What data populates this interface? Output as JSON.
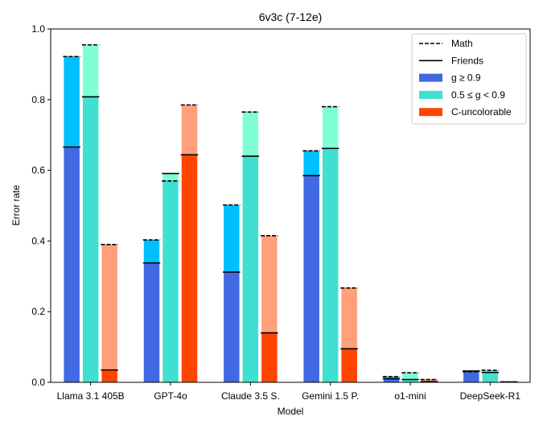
{
  "chart_data": {
    "type": "bar",
    "title": "6v3c (7-12e)",
    "xlabel": "Model",
    "ylabel": "Error rate",
    "ylim": [
      0,
      1.0
    ],
    "yticks": [
      "0.0",
      "0.2",
      "0.4",
      "0.6",
      "0.8",
      "1.0"
    ],
    "grid": false,
    "legend_position": "top-right",
    "categories": [
      "Llama 3.1 405B",
      "GPT-4o",
      "Claude 3.5 S.",
      "Gemini 1.5 P.",
      "o1-mini",
      "DeepSeek-R1"
    ],
    "legend": {
      "math": "Math",
      "friends": "Friends",
      "g_high": "g ≥ 0.9",
      "g_mid": "0.5 ≤ g < 0.9",
      "uncolorable": "C-uncolorable"
    },
    "colors": {
      "g_high_friends": "#4169e1",
      "g_high_math": "#00bfff",
      "g_mid_friends": "#40e0d0",
      "g_mid_math": "#7fffd4",
      "uncol_friends": "#ff4500",
      "uncol_math": "#ffa07a"
    },
    "series": [
      {
        "name": "g ≥ 0.9",
        "friends": [
          0.666,
          0.338,
          0.312,
          0.585,
          0.01,
          0.032
        ],
        "math": [
          0.922,
          0.403,
          0.502,
          0.655,
          0.016,
          0.03
        ]
      },
      {
        "name": "0.5 ≤ g < 0.9",
        "friends": [
          0.808,
          0.591,
          0.64,
          0.662,
          0.008,
          0.028
        ],
        "math": [
          0.955,
          0.57,
          0.765,
          0.78,
          0.027,
          0.034
        ]
      },
      {
        "name": "C-uncolorable",
        "friends": [
          0.035,
          0.644,
          0.14,
          0.095,
          0.002,
          0.001
        ],
        "math": [
          0.39,
          0.785,
          0.415,
          0.267,
          0.008,
          0.001
        ]
      }
    ]
  }
}
